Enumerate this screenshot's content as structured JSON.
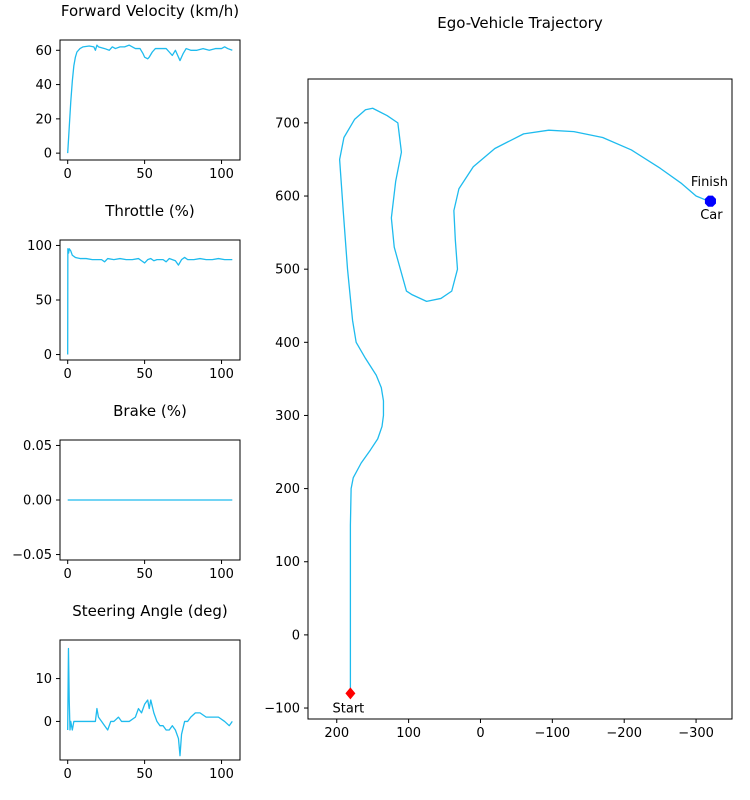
{
  "chart_data": [
    {
      "type": "line",
      "title": "Forward Velocity (km/h)",
      "xlabel": "",
      "ylabel": "",
      "xlim": [
        -5,
        112
      ],
      "ylim": [
        -4,
        66
      ],
      "xticks": [
        0,
        50,
        100
      ],
      "yticks": [
        0,
        20,
        40,
        60
      ],
      "series": [
        {
          "name": "velocity",
          "points": [
            [
              0,
              0
            ],
            [
              1,
              15
            ],
            [
              2,
              30
            ],
            [
              3,
              42
            ],
            [
              4,
              51
            ],
            [
              5,
              56
            ],
            [
              6,
              59
            ],
            [
              8,
              61
            ],
            [
              10,
              62
            ],
            [
              14,
              62.5
            ],
            [
              17,
              62
            ],
            [
              18,
              60
            ],
            [
              19,
              63
            ],
            [
              20,
              62
            ],
            [
              24,
              61
            ],
            [
              27,
              60
            ],
            [
              29,
              62
            ],
            [
              31,
              61
            ],
            [
              34,
              62
            ],
            [
              37,
              62
            ],
            [
              40,
              63
            ],
            [
              44,
              61
            ],
            [
              47,
              61
            ],
            [
              49,
              58
            ],
            [
              50,
              56
            ],
            [
              52,
              55
            ],
            [
              53,
              56
            ],
            [
              55,
              59
            ],
            [
              57,
              61
            ],
            [
              60,
              61
            ],
            [
              64,
              61
            ],
            [
              66,
              59
            ],
            [
              68,
              57
            ],
            [
              70,
              60
            ],
            [
              72,
              56
            ],
            [
              73,
              54
            ],
            [
              75,
              58
            ],
            [
              77,
              61
            ],
            [
              80,
              60
            ],
            [
              84,
              60
            ],
            [
              88,
              61
            ],
            [
              92,
              60
            ],
            [
              96,
              61
            ],
            [
              100,
              61
            ],
            [
              102,
              62
            ],
            [
              104,
              61
            ],
            [
              107,
              60
            ]
          ]
        }
      ]
    },
    {
      "type": "line",
      "title": "Throttle (%)",
      "xlabel": "",
      "ylabel": "",
      "xlim": [
        -5,
        112
      ],
      "ylim": [
        -5,
        105
      ],
      "xticks": [
        0,
        50,
        100
      ],
      "yticks": [
        0,
        50,
        100
      ],
      "series": [
        {
          "name": "throttle",
          "points": [
            [
              0,
              0
            ],
            [
              0.1,
              97
            ],
            [
              0.6,
              93
            ],
            [
              1,
              97
            ],
            [
              2,
              95
            ],
            [
              3,
              91
            ],
            [
              5,
              89
            ],
            [
              8,
              88
            ],
            [
              12,
              88
            ],
            [
              16,
              87
            ],
            [
              20,
              87
            ],
            [
              22,
              87
            ],
            [
              24,
              85
            ],
            [
              26,
              88
            ],
            [
              30,
              87
            ],
            [
              34,
              88
            ],
            [
              38,
              87
            ],
            [
              42,
              87
            ],
            [
              46,
              88
            ],
            [
              48,
              86
            ],
            [
              50,
              84
            ],
            [
              52,
              87
            ],
            [
              54,
              88
            ],
            [
              56,
              86
            ],
            [
              58,
              87
            ],
            [
              62,
              87
            ],
            [
              64,
              85
            ],
            [
              66,
              88
            ],
            [
              68,
              87
            ],
            [
              70,
              86
            ],
            [
              72,
              82
            ],
            [
              74,
              87
            ],
            [
              76,
              89
            ],
            [
              78,
              87
            ],
            [
              82,
              87
            ],
            [
              86,
              88
            ],
            [
              90,
              87
            ],
            [
              94,
              87
            ],
            [
              98,
              88
            ],
            [
              102,
              87
            ],
            [
              107,
              87
            ]
          ]
        }
      ]
    },
    {
      "type": "line",
      "title": "Brake (%)",
      "xlabel": "",
      "ylabel": "",
      "xlim": [
        -5,
        112
      ],
      "ylim": [
        -0.055,
        0.055
      ],
      "xticks": [
        0,
        50,
        100
      ],
      "yticks": [
        -0.05,
        0.0,
        0.05
      ],
      "ytick_labels": [
        "−0.05",
        "0.00",
        "0.05"
      ],
      "series": [
        {
          "name": "brake",
          "points": [
            [
              0,
              0
            ],
            [
              107,
              0
            ]
          ]
        }
      ]
    },
    {
      "type": "line",
      "title": "Steering Angle (deg)",
      "xlabel": "",
      "ylabel": "",
      "xlim": [
        -5,
        112
      ],
      "ylim": [
        -9,
        19
      ],
      "xticks": [
        0,
        50,
        100
      ],
      "yticks": [
        0,
        10
      ],
      "series": [
        {
          "name": "steering",
          "points": [
            [
              0,
              -2
            ],
            [
              0.5,
              17
            ],
            [
              1,
              5
            ],
            [
              1.5,
              -2
            ],
            [
              2,
              0
            ],
            [
              3,
              -2
            ],
            [
              4,
              0
            ],
            [
              6,
              0
            ],
            [
              10,
              0
            ],
            [
              15,
              0
            ],
            [
              18,
              0
            ],
            [
              19,
              3
            ],
            [
              20,
              1
            ],
            [
              22,
              0
            ],
            [
              24,
              -1
            ],
            [
              26,
              -2
            ],
            [
              28,
              0
            ],
            [
              30,
              0
            ],
            [
              33,
              1
            ],
            [
              35,
              0
            ],
            [
              40,
              0
            ],
            [
              44,
              1
            ],
            [
              46,
              3
            ],
            [
              48,
              2
            ],
            [
              50,
              4
            ],
            [
              52,
              5
            ],
            [
              53,
              3
            ],
            [
              54,
              5
            ],
            [
              56,
              2
            ],
            [
              58,
              0
            ],
            [
              60,
              -1
            ],
            [
              62,
              -1
            ],
            [
              64,
              -2
            ],
            [
              66,
              -2
            ],
            [
              68,
              -1
            ],
            [
              70,
              -2
            ],
            [
              72,
              -4
            ],
            [
              73,
              -8
            ],
            [
              74,
              -3
            ],
            [
              76,
              0
            ],
            [
              78,
              0
            ],
            [
              80,
              1
            ],
            [
              83,
              2
            ],
            [
              86,
              2
            ],
            [
              90,
              1
            ],
            [
              94,
              1
            ],
            [
              98,
              1
            ],
            [
              102,
              0
            ],
            [
              105,
              -1
            ],
            [
              107,
              0
            ]
          ]
        }
      ]
    },
    {
      "type": "line",
      "title": "Ego-Vehicle Trajectory",
      "xlabel": "",
      "ylabel": "",
      "xlim": [
        240,
        -350
      ],
      "ylim": [
        -115,
        760
      ],
      "xticks": [
        200,
        100,
        0,
        -100,
        -200,
        -300
      ],
      "xtick_labels": [
        "200",
        "100",
        "0",
        "−100",
        "−200",
        "−300"
      ],
      "yticks": [
        -100,
        0,
        100,
        200,
        300,
        400,
        500,
        600,
        700
      ],
      "ytick_labels": [
        "−100",
        "0",
        "100",
        "200",
        "300",
        "400",
        "500",
        "600",
        "700"
      ],
      "series": [
        {
          "name": "trajectory",
          "points": [
            [
              181,
              -80
            ],
            [
              181,
              -50
            ],
            [
              181,
              0
            ],
            [
              181,
              50
            ],
            [
              181,
              100
            ],
            [
              181,
              150
            ],
            [
              180,
              200
            ],
            [
              177,
              215
            ],
            [
              166,
              235
            ],
            [
              153,
              253
            ],
            [
              143,
              268
            ],
            [
              137,
              285
            ],
            [
              135,
              300
            ],
            [
              135,
              320
            ],
            [
              138,
              338
            ],
            [
              145,
              355
            ],
            [
              160,
              378
            ],
            [
              173,
              400
            ],
            [
              178,
              430
            ],
            [
              185,
              500
            ],
            [
              191,
              580
            ],
            [
              196,
              650
            ],
            [
              190,
              680
            ],
            [
              175,
              705
            ],
            [
              160,
              718
            ],
            [
              150,
              720
            ],
            [
              130,
              710
            ],
            [
              115,
              700
            ],
            [
              110,
              660
            ],
            [
              118,
              620
            ],
            [
              124,
              570
            ],
            [
              120,
              530
            ],
            [
              103,
              470
            ],
            [
              95,
              465
            ],
            [
              75,
              456
            ],
            [
              55,
              460
            ],
            [
              40,
              470
            ],
            [
              32,
              500
            ],
            [
              35,
              540
            ],
            [
              37,
              580
            ],
            [
              30,
              610
            ],
            [
              10,
              640
            ],
            [
              -20,
              665
            ],
            [
              -60,
              685
            ],
            [
              -95,
              690
            ],
            [
              -130,
              688
            ],
            [
              -170,
              680
            ],
            [
              -210,
              663
            ],
            [
              -250,
              638
            ],
            [
              -280,
              617
            ],
            [
              -300,
              600
            ],
            [
              -315,
              594
            ],
            [
              -323,
              592
            ]
          ]
        }
      ],
      "markers": [
        {
          "name": "start",
          "x": 181,
          "y": -80,
          "color": "#ff0000",
          "shape": "diamond",
          "label": "Start"
        },
        {
          "name": "finish",
          "x": -320,
          "y": 593,
          "color": "#0000ff",
          "shape": "octagon",
          "label": "Finish"
        },
        {
          "name": "car",
          "x": -320,
          "y": 593,
          "color": "#0000ff",
          "shape": "circle",
          "label": "Car"
        }
      ]
    }
  ],
  "colors": {
    "line": "#1ebbee",
    "start": "#ff0000",
    "car": "#0000ff",
    "axis": "#000000"
  }
}
